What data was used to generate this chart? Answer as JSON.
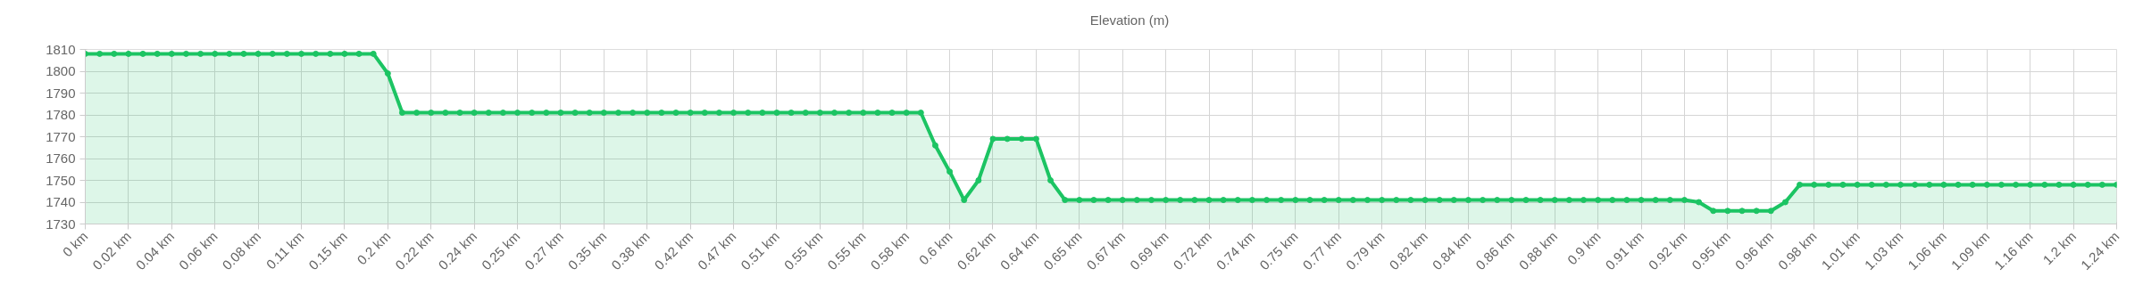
{
  "chart_data": {
    "type": "area",
    "categories": [
      "0 km",
      null,
      null,
      "0.02 km",
      null,
      null,
      "0.04 km",
      null,
      null,
      "0.06 km",
      null,
      null,
      "0.08 km",
      null,
      null,
      "0.11 km",
      null,
      null,
      "0.15 km",
      null,
      null,
      "0.2 km",
      null,
      null,
      "0.22 km",
      null,
      null,
      "0.24 km",
      null,
      null,
      "0.25 km",
      null,
      null,
      "0.27 km",
      null,
      null,
      "0.35 km",
      null,
      null,
      "0.38 km",
      null,
      null,
      "0.42 km",
      null,
      null,
      "0.47 km",
      null,
      null,
      "0.51 km",
      null,
      null,
      "0.55 km",
      null,
      null,
      "0.55 km",
      null,
      null,
      "0.58 km",
      null,
      null,
      "0.6 km",
      null,
      null,
      "0.62 km",
      null,
      null,
      "0.64 km",
      null,
      null,
      "0.65 km",
      null,
      null,
      "0.67 km",
      null,
      null,
      "0.69 km",
      null,
      null,
      "0.72 km",
      null,
      null,
      "0.74 km",
      null,
      null,
      "0.75 km",
      null,
      null,
      "0.77 km",
      null,
      null,
      "0.79 km",
      null,
      null,
      "0.82 km",
      null,
      null,
      "0.84 km",
      null,
      null,
      "0.86 km",
      null,
      null,
      "0.88 km",
      null,
      null,
      "0.9 km",
      null,
      null,
      "0.91 km",
      null,
      null,
      "0.92 km",
      null,
      null,
      "0.95 km",
      null,
      null,
      "0.96 km",
      null,
      null,
      "0.98 km",
      null,
      null,
      "1.01 km",
      null,
      null,
      "1.03 km",
      null,
      null,
      "1.06 km",
      null,
      null,
      "1.09 km",
      null,
      null,
      "1.16 km",
      null,
      null,
      "1.2 km",
      null,
      null,
      "1.24 km"
    ],
    "series": [
      {
        "name": "Elevation (m)",
        "color": "#1cc463",
        "values": [
          1808,
          1808,
          1808,
          1808,
          1808,
          1808,
          1808,
          1808,
          1808,
          1808,
          1808,
          1808,
          1808,
          1808,
          1808,
          1808,
          1808,
          1808,
          1808,
          1808,
          1808,
          1799,
          1781,
          1781,
          1781,
          1781,
          1781,
          1781,
          1781,
          1781,
          1781,
          1781,
          1781,
          1781,
          1781,
          1781,
          1781,
          1781,
          1781,
          1781,
          1781,
          1781,
          1781,
          1781,
          1781,
          1781,
          1781,
          1781,
          1781,
          1781,
          1781,
          1781,
          1781,
          1781,
          1781,
          1781,
          1781,
          1781,
          1781,
          1766,
          1754,
          1741,
          1750,
          1769,
          1769,
          1769,
          1769,
          1750,
          1741,
          1741,
          1741,
          1741,
          1741,
          1741,
          1741,
          1741,
          1741,
          1741,
          1741,
          1741,
          1741,
          1741,
          1741,
          1741,
          1741,
          1741,
          1741,
          1741,
          1741,
          1741,
          1741,
          1741,
          1741,
          1741,
          1741,
          1741,
          1741,
          1741,
          1741,
          1741,
          1741,
          1741,
          1741,
          1741,
          1741,
          1741,
          1741,
          1741,
          1741,
          1741,
          1741,
          1741,
          1740,
          1736,
          1736,
          1736,
          1736,
          1736,
          1740,
          1748,
          1748,
          1748,
          1748,
          1748,
          1748,
          1748,
          1748,
          1748,
          1748,
          1748,
          1748,
          1748,
          1748,
          1748,
          1748,
          1748,
          1748,
          1748,
          1748,
          1748,
          1748,
          1748
        ]
      }
    ],
    "ylim": [
      1730,
      1810
    ],
    "yticks": [
      1730,
      1740,
      1750,
      1760,
      1770,
      1780,
      1790,
      1800,
      1810
    ],
    "grid": true,
    "legend": "top",
    "marker": "circle",
    "line_style": "solid"
  }
}
